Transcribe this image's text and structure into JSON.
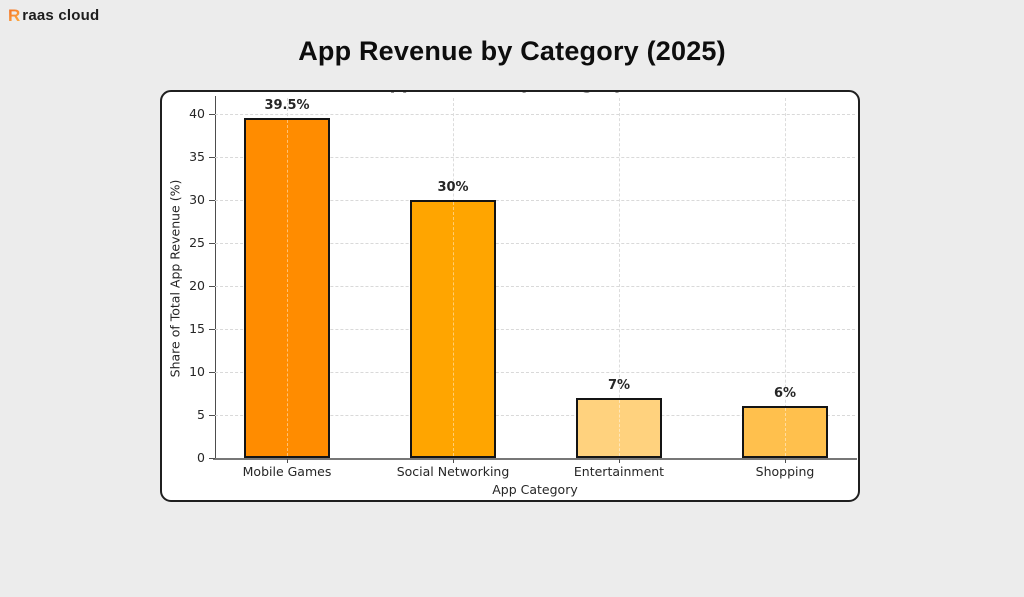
{
  "brand": {
    "icon_letter": "R",
    "wordmark": "raas cloud"
  },
  "page_title": "App Revenue by Category (2025)",
  "chart_data": {
    "type": "bar",
    "title": "App Revenue by Category (2025)",
    "title_note": "figure's own title is clipped at the top edge of the card; only letter descenders are visible",
    "categories": [
      "Mobile Games",
      "Social Networking",
      "Entertainment",
      "Shopping"
    ],
    "values": [
      39.5,
      30,
      7,
      6
    ],
    "value_labels": [
      "39.5%",
      "30%",
      "7%",
      "6%"
    ],
    "bar_colors": [
      "#FF8C00",
      "#FFA500",
      "#FFD27E",
      "#FFC04D"
    ],
    "xlabel": "App Category",
    "ylabel": "Share of Total App Revenue (%)",
    "ylim": [
      0,
      40
    ],
    "yticks": [
      0,
      5,
      10,
      15,
      20,
      25,
      30,
      35,
      40
    ],
    "grid": "dashed horizontal lines at each y tick and dashed vertical lines at each bar center",
    "legend": "none"
  },
  "colors": {
    "page_background": "#ececec",
    "card_background": "#ffffff",
    "card_border": "#1f1f1f",
    "axis_text": "#262626",
    "gridline": "#d9d9d9",
    "brand_orange": "#f58220"
  }
}
